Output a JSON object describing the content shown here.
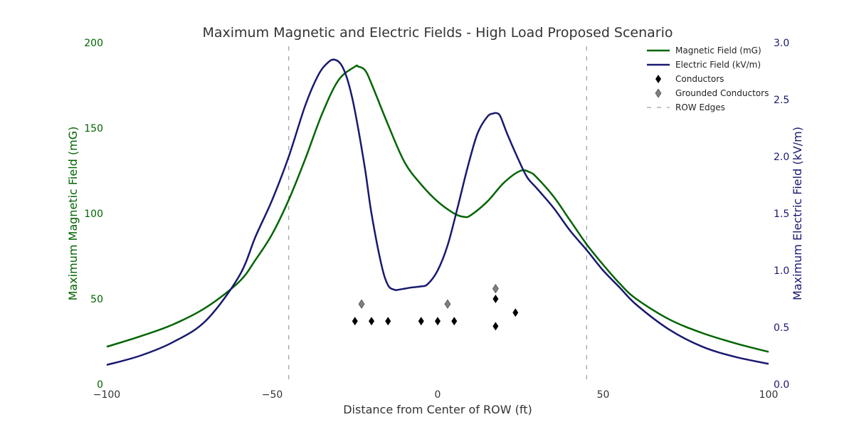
{
  "chart_data": {
    "type": "line",
    "title": "Maximum Magnetic and Electric Fields - High Load Proposed Scenario",
    "xlabel": "Distance from Center of ROW (ft)",
    "ylabel_left": "Maximum Magnetic Field (mG)",
    "ylabel_right": "Maximum Electric Field (kV/m)",
    "xlim": [
      -100,
      100
    ],
    "ylim_left": [
      0,
      200
    ],
    "ylim_right": [
      0.0,
      3.0
    ],
    "x_ticks": [
      "−100",
      "−50",
      "0",
      "50",
      "100"
    ],
    "x_tick_values": [
      -100,
      -50,
      0,
      50,
      100
    ],
    "y_left_ticks": [
      "0",
      "50",
      "100",
      "150",
      "200"
    ],
    "y_left_tick_values": [
      0,
      50,
      100,
      150,
      200
    ],
    "y_right_ticks": [
      "0.0",
      "0.5",
      "1.0",
      "1.5",
      "2.0",
      "2.5",
      "3.0"
    ],
    "y_right_tick_values": [
      0.0,
      0.5,
      1.0,
      1.5,
      2.0,
      2.5,
      3.0
    ],
    "grid": false,
    "legend_position": "top-right",
    "colors": {
      "magnetic": "#006400",
      "electric": "#191970",
      "conductor": "#000000",
      "grounded": "#808080",
      "row": "#888888",
      "title": "#333333"
    },
    "series": [
      {
        "name": "Magnetic Field (mG)",
        "axis": "left",
        "x": [
          -100,
          -90,
          -80,
          -70,
          -60,
          -55,
          -50,
          -45,
          -40,
          -35,
          -30,
          -25,
          -24,
          -22,
          -20,
          -15,
          -10,
          -5,
          0,
          5,
          8,
          10,
          15,
          20,
          25,
          28,
          30,
          35,
          40,
          45,
          50,
          55,
          60,
          70,
          80,
          90,
          100
        ],
        "values": [
          22,
          28,
          35,
          45,
          60,
          73,
          88,
          108,
          132,
          158,
          178,
          186,
          186,
          184,
          176,
          152,
          130,
          117,
          107,
          100,
          98,
          99,
          107,
          118,
          125,
          124,
          121,
          110,
          96,
          82,
          70,
          59,
          50,
          38,
          30,
          24,
          19
        ]
      },
      {
        "name": "Electric Field (kV/m)",
        "axis": "right",
        "x": [
          -100,
          -90,
          -80,
          -70,
          -60,
          -55,
          -50,
          -45,
          -40,
          -36,
          -33,
          -31,
          -29,
          -27,
          -25,
          -22,
          -20,
          -17,
          -15,
          -13,
          -12,
          -10,
          -8,
          -5,
          -3,
          0,
          3,
          6,
          9,
          12,
          15,
          17,
          18,
          19,
          21,
          24,
          27,
          30,
          35,
          40,
          45,
          50,
          55,
          60,
          70,
          80,
          90,
          100
        ],
        "values": [
          0.17,
          0.25,
          0.37,
          0.56,
          0.95,
          1.3,
          1.62,
          2.0,
          2.45,
          2.72,
          2.83,
          2.85,
          2.8,
          2.65,
          2.4,
          1.9,
          1.5,
          1.05,
          0.87,
          0.83,
          0.83,
          0.84,
          0.85,
          0.86,
          0.88,
          1.0,
          1.22,
          1.55,
          1.9,
          2.2,
          2.35,
          2.38,
          2.38,
          2.35,
          2.2,
          2.0,
          1.82,
          1.72,
          1.55,
          1.35,
          1.18,
          1.0,
          0.85,
          0.7,
          0.48,
          0.33,
          0.24,
          0.18
        ]
      },
      {
        "name": "Conductors",
        "axis": "left",
        "marker": "diamond",
        "x": [
          -25,
          -20,
          -15,
          -5,
          0,
          5,
          17.5,
          17.5,
          23.5
        ],
        "values": [
          37,
          37,
          37,
          37,
          37,
          37,
          50,
          34,
          42
        ]
      },
      {
        "name": "Grounded Conductors",
        "axis": "left",
        "marker": "diamond",
        "x": [
          -23,
          3,
          17.5
        ],
        "values": [
          47,
          47,
          56
        ]
      },
      {
        "name": "ROW Edges",
        "axis": "left",
        "style": "dashed-vertical",
        "x": [
          -45,
          45
        ]
      }
    ]
  }
}
